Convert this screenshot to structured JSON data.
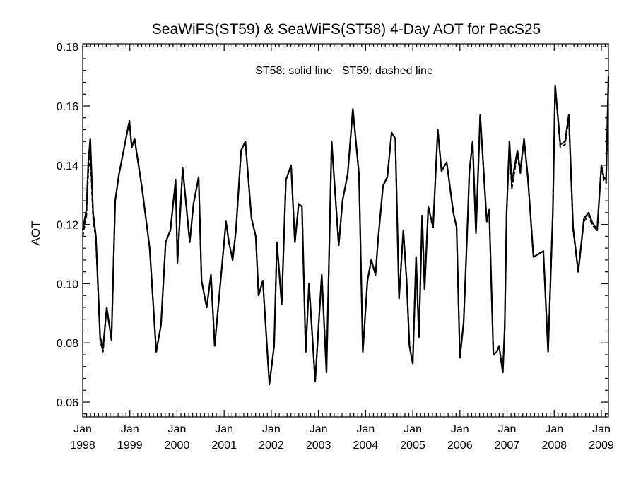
{
  "chart_data": {
    "type": "line",
    "title": "SeaWiFS(ST59) & SeaWiFS(ST58) 4-Day AOT for PacS25",
    "annotation": "ST58: solid line   ST59: dashed line",
    "xlabel": "",
    "ylabel": "AOT",
    "xlim": [
      1998.0,
      2009.15
    ],
    "ylim": [
      0.055,
      0.181
    ],
    "yticks": [
      0.06,
      0.08,
      0.1,
      0.12,
      0.14,
      0.16,
      0.18
    ],
    "ytick_labels": [
      "0.06",
      "0.08",
      "0.10",
      "0.12",
      "0.14",
      "0.16",
      "0.18"
    ],
    "xticks": [
      1998,
      1999,
      2000,
      2001,
      2002,
      2003,
      2004,
      2005,
      2006,
      2007,
      2008,
      2009
    ],
    "xtick_labels": [
      {
        "month": "Jan",
        "year": "1998"
      },
      {
        "month": "Jan",
        "year": "1999"
      },
      {
        "month": "Jan",
        "year": "2000"
      },
      {
        "month": "Jan",
        "year": "2001"
      },
      {
        "month": "Jan",
        "year": "2002"
      },
      {
        "month": "Jan",
        "year": "2003"
      },
      {
        "month": "Jan",
        "year": "2004"
      },
      {
        "month": "Jan",
        "year": "2005"
      },
      {
        "month": "Jan",
        "year": "2006"
      },
      {
        "month": "Jan",
        "year": "2007"
      },
      {
        "month": "Jan",
        "year": "2008"
      },
      {
        "month": "Jan",
        "year": "2009"
      }
    ],
    "x": [
      1998.0,
      1998.08,
      1998.12,
      1998.16,
      1998.22,
      1998.28,
      1998.37,
      1998.43,
      1998.51,
      1998.61,
      1998.69,
      1998.77,
      1998.99,
      1999.04,
      1999.1,
      1999.26,
      1999.42,
      1999.56,
      1999.66,
      1999.76,
      1999.86,
      1999.97,
      2000.01,
      2000.12,
      2000.27,
      2000.35,
      2000.46,
      2000.52,
      2000.63,
      2000.72,
      2000.8,
      2001.04,
      2001.1,
      2001.18,
      2001.25,
      2001.36,
      2001.45,
      2001.58,
      2001.67,
      2001.73,
      2001.82,
      2001.96,
      2002.06,
      2002.12,
      2002.22,
      2002.31,
      2002.42,
      2002.5,
      2002.58,
      2002.65,
      2002.73,
      2002.8,
      2002.93,
      2003.07,
      2003.17,
      2003.28,
      2003.43,
      2003.51,
      2003.62,
      2003.73,
      2003.86,
      2003.94,
      2004.04,
      2004.12,
      2004.21,
      2004.26,
      2004.37,
      2004.46,
      2004.55,
      2004.63,
      2004.71,
      2004.8,
      2004.87,
      2004.93,
      2005.0,
      2005.07,
      2005.13,
      2005.2,
      2005.25,
      2005.33,
      2005.43,
      2005.53,
      2005.61,
      2005.72,
      2005.86,
      2005.93,
      2006.0,
      2006.08,
      2006.17,
      2006.2,
      2006.27,
      2006.34,
      2006.43,
      2006.57,
      2006.62,
      2006.71,
      2006.78,
      2006.83,
      2006.91,
      2006.95,
      2006.99,
      2007.05,
      2007.1,
      2007.22,
      2007.28,
      2007.36,
      2007.44,
      2007.56,
      2007.77,
      2007.87,
      2007.97,
      2008.02,
      2008.13,
      2008.23,
      2008.31,
      2008.4,
      2008.51,
      2008.63,
      2008.73,
      2008.8,
      2008.91,
      2009.0,
      2009.05,
      2009.1,
      2009.15
    ],
    "series": [
      {
        "name": "ST58",
        "style": "solid",
        "values": [
          0.118,
          0.125,
          0.141,
          0.149,
          0.124,
          0.116,
          0.082,
          0.078,
          0.092,
          0.081,
          0.128,
          0.137,
          0.155,
          0.146,
          0.149,
          0.132,
          0.112,
          0.077,
          0.086,
          0.114,
          0.118,
          0.135,
          0.107,
          0.139,
          0.114,
          0.127,
          0.136,
          0.101,
          0.092,
          0.103,
          0.079,
          0.121,
          0.114,
          0.108,
          0.118,
          0.145,
          0.148,
          0.122,
          0.116,
          0.096,
          0.101,
          0.066,
          0.079,
          0.114,
          0.093,
          0.135,
          0.14,
          0.114,
          0.127,
          0.126,
          0.077,
          0.1,
          0.067,
          0.103,
          0.07,
          0.148,
          0.113,
          0.128,
          0.137,
          0.159,
          0.137,
          0.077,
          0.101,
          0.108,
          0.103,
          0.114,
          0.133,
          0.136,
          0.151,
          0.149,
          0.095,
          0.118,
          0.101,
          0.079,
          0.073,
          0.109,
          0.082,
          0.123,
          0.098,
          0.126,
          0.119,
          0.152,
          0.138,
          0.141,
          0.124,
          0.119,
          0.075,
          0.087,
          0.124,
          0.138,
          0.148,
          0.117,
          0.157,
          0.121,
          0.125,
          0.076,
          0.077,
          0.079,
          0.07,
          0.085,
          0.124,
          0.148,
          0.134,
          0.145,
          0.138,
          0.149,
          0.136,
          0.109,
          0.111,
          0.077,
          0.124,
          0.167,
          0.147,
          0.148,
          0.157,
          0.119,
          0.104,
          0.122,
          0.124,
          0.121,
          0.118,
          0.14,
          0.136,
          0.135,
          0.17
        ]
      },
      {
        "name": "ST59",
        "style": "dashed",
        "values": [
          0.116,
          0.123,
          0.138,
          0.145,
          0.122,
          0.115,
          0.081,
          0.077,
          0.092,
          0.081,
          0.128,
          0.137,
          0.155,
          0.146,
          0.149,
          0.132,
          0.112,
          0.077,
          0.086,
          0.114,
          0.118,
          0.135,
          0.107,
          0.139,
          0.114,
          0.127,
          0.136,
          0.101,
          0.092,
          0.103,
          0.079,
          0.121,
          0.114,
          0.108,
          0.118,
          0.145,
          0.148,
          0.122,
          0.116,
          0.096,
          0.101,
          0.066,
          0.079,
          0.114,
          0.093,
          0.135,
          0.14,
          0.114,
          0.127,
          0.126,
          0.077,
          0.1,
          0.067,
          0.103,
          0.07,
          0.148,
          0.113,
          0.128,
          0.137,
          0.159,
          0.137,
          0.077,
          0.101,
          0.108,
          0.103,
          0.114,
          0.133,
          0.136,
          0.151,
          0.149,
          0.095,
          0.118,
          0.101,
          0.079,
          0.073,
          0.109,
          0.082,
          0.123,
          0.098,
          0.126,
          0.119,
          0.152,
          0.138,
          0.141,
          0.124,
          0.119,
          0.075,
          0.087,
          0.124,
          0.138,
          0.148,
          0.117,
          0.157,
          0.121,
          0.125,
          0.076,
          0.077,
          0.079,
          0.07,
          0.085,
          0.124,
          0.148,
          0.132,
          0.144,
          0.137,
          0.149,
          0.136,
          0.109,
          0.111,
          0.077,
          0.124,
          0.167,
          0.146,
          0.147,
          0.156,
          0.118,
          0.104,
          0.121,
          0.123,
          0.12,
          0.118,
          0.14,
          0.135,
          0.134,
          0.168
        ]
      }
    ],
    "grid": false,
    "legend": "none"
  }
}
